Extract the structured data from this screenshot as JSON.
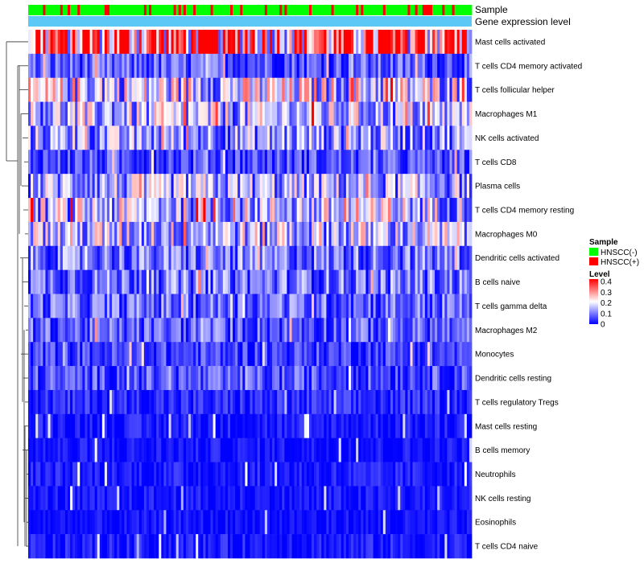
{
  "chart_data": {
    "type": "heatmap",
    "annotation_rows": [
      "Sample",
      "Gene expression level"
    ],
    "row_labels": [
      "Mast cells activated",
      "T cells CD4 memory activated",
      "T cells follicular helper",
      "Macrophages M1",
      "NK cells activated",
      "T cells CD8",
      "Plasma cells",
      "T cells CD4 memory resting",
      "Macrophages M0",
      "Dendritic cells activated",
      "B cells naive",
      "T cells gamma delta",
      "Macrophages M2",
      "Monocytes",
      "Dendritic cells resting",
      "T cells regulatory  Tregs",
      "Mast cells resting",
      "B cells memory",
      "Neutrophils",
      "NK cells resting",
      "Eosinophils",
      "T cells CD4 naive"
    ],
    "row_mean_levels": [
      0.32,
      0.07,
      0.17,
      0.14,
      0.12,
      0.06,
      0.13,
      0.15,
      0.15,
      0.09,
      0.09,
      0.08,
      0.07,
      0.05,
      0.06,
      0.03,
      0.02,
      0.015,
      0.02,
      0.015,
      0.01,
      0.02
    ],
    "n_samples": 180,
    "sample_groups": [
      "HNSCC(-)",
      "HNSCC(+)"
    ],
    "legend": {
      "sample_title": "Sample",
      "sample_items": [
        {
          "label": "HNSCC(-)",
          "color": "#00ff00"
        },
        {
          "label": "HNSCC(+)",
          "color": "#ff0000"
        }
      ],
      "level_title": "Level",
      "level_ticks": [
        "0.4",
        "0.3",
        "0.2",
        "0.1",
        "0"
      ],
      "level_range": [
        0,
        0.4
      ],
      "color_low": "#0000ff",
      "color_mid": "#ffffff",
      "color_high": "#ff0000"
    },
    "annotation_color_gene_expression": "#5bc8f5"
  }
}
